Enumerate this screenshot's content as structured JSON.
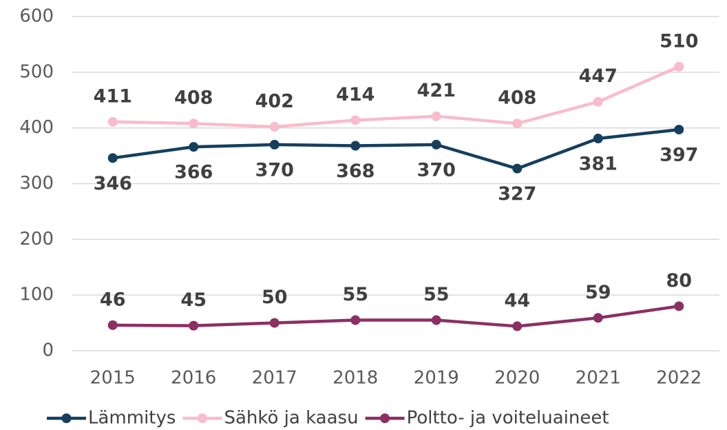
{
  "chart_data": {
    "type": "line",
    "categories": [
      "2015",
      "2016",
      "2017",
      "2018",
      "2019",
      "2020",
      "2021",
      "2022"
    ],
    "series": [
      {
        "name": "Lämmitys",
        "color": "#163f5e",
        "values": [
          346,
          366,
          370,
          368,
          370,
          327,
          381,
          397
        ],
        "data_labels": "below"
      },
      {
        "name": "Sähkö ja kaasu",
        "color": "#f8bccb",
        "values": [
          411,
          408,
          402,
          414,
          421,
          408,
          447,
          510
        ],
        "data_labels": "above"
      },
      {
        "name": "Poltto- ja voiteluaineet",
        "color": "#8c2f63",
        "values": [
          46,
          45,
          50,
          55,
          55,
          44,
          59,
          80
        ],
        "data_labels": "above"
      }
    ],
    "ylim": [
      0,
      600
    ],
    "yticks": [
      0,
      100,
      200,
      300,
      400,
      500,
      600
    ],
    "grid": true,
    "legend": "bottom"
  }
}
